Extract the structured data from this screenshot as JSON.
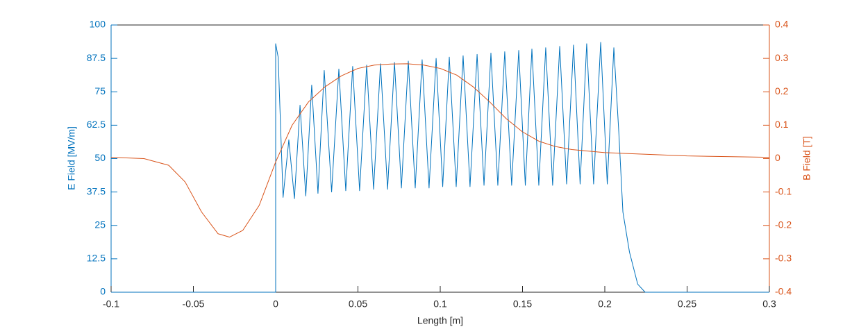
{
  "chart_data": {
    "type": "line",
    "xlabel": "Length [m]",
    "ylabel": "E Field [MV/m]",
    "y2label": "B Field [T]",
    "xlim": [
      -0.1,
      0.3
    ],
    "xticks": [
      -0.1,
      -0.05,
      0,
      0.05,
      0.1,
      0.15,
      0.2,
      0.25,
      0.3
    ],
    "ylim": [
      0,
      100
    ],
    "yticks": [
      0,
      12.5,
      25,
      37.5,
      50,
      62.5,
      75,
      87.5,
      100
    ],
    "y2lim": [
      -0.4,
      0.4
    ],
    "y2ticks": [
      -0.4,
      -0.3,
      -0.2,
      -0.1,
      0,
      0.1,
      0.2,
      0.3,
      0.4
    ],
    "series": [
      {
        "color": "#0072BD",
        "x": [
          -0.1,
          0,
          0,
          0.0015,
          0.0045,
          0.008,
          0.0114,
          0.0148,
          0.0183,
          0.0219,
          0.0257,
          0.0295,
          0.034,
          0.0384,
          0.0426,
          0.0468,
          0.051,
          0.0553,
          0.0595,
          0.0637,
          0.068,
          0.0722,
          0.0764,
          0.0806,
          0.0848,
          0.089,
          0.0932,
          0.0975,
          0.1015,
          0.1055,
          0.1097,
          0.1139,
          0.1181,
          0.1224,
          0.1266,
          0.1308,
          0.135,
          0.1392,
          0.1434,
          0.1477,
          0.1517,
          0.1557,
          0.1599,
          0.1641,
          0.1683,
          0.1726,
          0.1768,
          0.181,
          0.185,
          0.189,
          0.1932,
          0.1975,
          0.2015,
          0.2055,
          0.2085,
          0.211,
          0.215,
          0.22,
          0.2245,
          0.3
        ],
        "values": [
          0,
          0,
          93,
          88,
          35.5,
          57,
          35,
          70,
          36,
          77.5,
          37,
          83,
          37.5,
          83.5,
          38,
          84.5,
          38,
          85,
          38.5,
          85.5,
          38.5,
          86,
          39,
          86.5,
          39,
          87,
          39,
          87.5,
          39.5,
          88,
          39.5,
          88.5,
          39.5,
          89,
          40,
          89.5,
          40,
          90,
          40,
          90.5,
          40,
          91,
          40,
          91.5,
          40,
          92,
          40.5,
          92.5,
          40.5,
          93,
          40.5,
          93.5,
          40.5,
          91.5,
          60,
          30,
          15,
          3,
          0,
          0
        ]
      },
      {
        "color": "#D95319",
        "axis": "y2",
        "x": [
          -0.1,
          -0.08,
          -0.065,
          -0.055,
          -0.045,
          -0.035,
          -0.028,
          -0.02,
          -0.01,
          0,
          0.01,
          0.02,
          0.03,
          0.04,
          0.05,
          0.06,
          0.07,
          0.08,
          0.09,
          0.1,
          0.11,
          0.12,
          0.13,
          0.14,
          0.15,
          0.16,
          0.17,
          0.18,
          0.2,
          0.25,
          0.3
        ],
        "values": [
          0.004,
          0.0,
          -0.02,
          -0.07,
          -0.16,
          -0.225,
          -0.235,
          -0.215,
          -0.14,
          -0.01,
          0.1,
          0.17,
          0.215,
          0.248,
          0.27,
          0.28,
          0.283,
          0.284,
          0.28,
          0.27,
          0.25,
          0.215,
          0.17,
          0.12,
          0.08,
          0.052,
          0.036,
          0.027,
          0.018,
          0.008,
          0.004
        ]
      }
    ]
  }
}
